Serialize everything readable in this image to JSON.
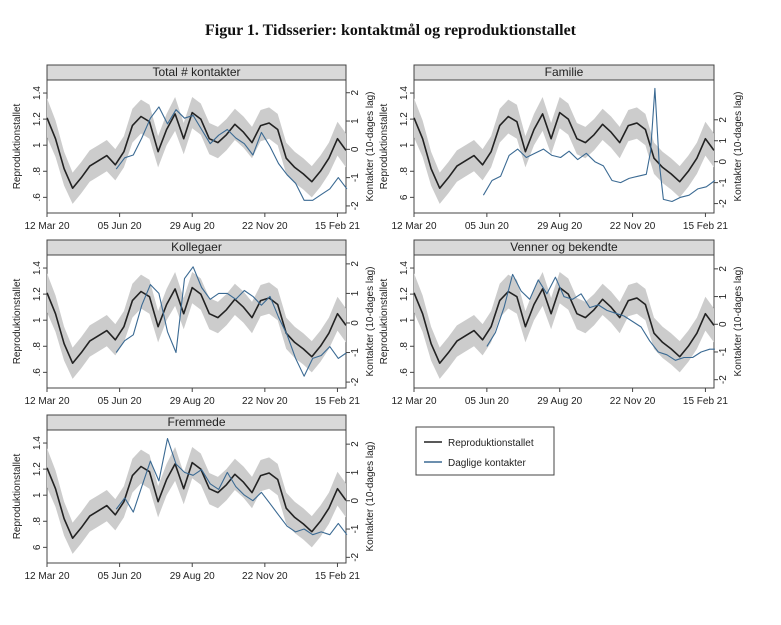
{
  "figure": {
    "title": "Figur 1. Tidsserier: kontaktmål og reproduktionstallet"
  },
  "chart_data": {
    "type": "line",
    "x_ticks": [
      "12 Mar 20",
      "05 Jun 20",
      "29 Aug 20",
      "22 Nov 20",
      "15 Feb 21"
    ],
    "left_ylabel": "Reproduktionstallet",
    "right_ylabel": "Kontakter (10-dages lag)",
    "legend": [
      {
        "name": "Reproduktionstallet",
        "color": "#222222"
      },
      {
        "name": "Daglige kontakter",
        "color": "#3b6a93"
      }
    ],
    "band_color": "#cccccc",
    "x_labels_sparse": [
      "12 Mar 20",
      "05 Jun 20",
      "29 Aug 20",
      "22 Nov 20",
      "15 Feb 21"
    ],
    "r_x": [
      "12 Mar 20",
      "22 Mar 20",
      "01 Apr 20",
      "11 Apr 20",
      "21 Apr 20",
      "01 May 20",
      "11 May 20",
      "21 May 20",
      "31 May 20",
      "10 Jun 20",
      "20 Jun 20",
      "30 Jun 20",
      "10 Jul 20",
      "20 Jul 20",
      "30 Jul 20",
      "09 Aug 20",
      "19 Aug 20",
      "29 Aug 20",
      "08 Sep 20",
      "18 Sep 20",
      "28 Sep 20",
      "08 Oct 20",
      "18 Oct 20",
      "28 Oct 20",
      "07 Nov 20",
      "17 Nov 20",
      "27 Nov 20",
      "07 Dec 20",
      "17 Dec 20",
      "27 Dec 20",
      "06 Jan 21",
      "16 Jan 21",
      "26 Jan 21",
      "05 Feb 21",
      "15 Feb 21",
      "25 Feb 21"
    ],
    "reproduction": [
      1.21,
      1.05,
      0.82,
      0.67,
      0.75,
      0.84,
      0.88,
      0.92,
      0.85,
      0.95,
      1.15,
      1.22,
      1.18,
      0.95,
      1.12,
      1.24,
      1.05,
      1.25,
      1.2,
      1.05,
      1.02,
      1.08,
      1.16,
      1.1,
      1.02,
      1.15,
      1.17,
      1.12,
      0.9,
      0.83,
      0.78,
      0.72,
      0.8,
      0.9,
      1.05,
      0.96
    ],
    "band_halfwidth": [
      0.15,
      0.14,
      0.13,
      0.12,
      0.12,
      0.12,
      0.12,
      0.12,
      0.12,
      0.12,
      0.13,
      0.13,
      0.13,
      0.12,
      0.12,
      0.13,
      0.12,
      0.12,
      0.12,
      0.12,
      0.12,
      0.12,
      0.12,
      0.12,
      0.12,
      0.12,
      0.12,
      0.12,
      0.12,
      0.12,
      0.12,
      0.12,
      0.12,
      0.12,
      0.13,
      0.13
    ],
    "panels": [
      {
        "title": "Total # kontakter",
        "left_ticks": [
          ".6",
          ".8",
          "1",
          "1.2",
          "1.4"
        ],
        "right_ticks": [
          "-2",
          "-1",
          "0",
          "1",
          "2"
        ],
        "ylim_right": [
          -2.25,
          2.45
        ],
        "contact_x": [
          "01 Jun 20",
          "11 Jun 20",
          "21 Jun 20",
          "01 Jul 20",
          "11 Jul 20",
          "21 Jul 20",
          "31 Jul 20",
          "10 Aug 20",
          "20 Aug 20",
          "30 Aug 20",
          "09 Sep 20",
          "19 Sep 20",
          "29 Sep 20",
          "09 Oct 20",
          "19 Oct 20",
          "29 Oct 20",
          "08 Nov 20",
          "18 Nov 20",
          "28 Nov 20",
          "08 Dec 20",
          "18 Dec 20",
          "28 Dec 20",
          "07 Jan 21",
          "17 Jan 21",
          "27 Jan 21",
          "06 Feb 21",
          "16 Feb 21",
          "26 Feb 21"
        ],
        "contacts": [
          -0.7,
          -0.3,
          -0.2,
          0.4,
          1.1,
          1.5,
          0.9,
          1.4,
          1.1,
          1.2,
          0.7,
          0.2,
          0.5,
          0.7,
          0.4,
          0.2,
          -0.2,
          0.6,
          0.1,
          -0.5,
          -0.9,
          -1.2,
          -1.8,
          -1.8,
          -1.6,
          -1.4,
          -1.0,
          -1.4
        ]
      },
      {
        "title": "Familie",
        "left_ticks": [
          "6",
          ".8",
          "1",
          "1.2",
          "1.4"
        ],
        "right_ticks": [
          "-2",
          "-1",
          "0",
          "1",
          "2"
        ],
        "ylim_right": [
          -2.45,
          3.9
        ],
        "contact_x": [
          "01 Jun 20",
          "11 Jun 20",
          "21 Jun 20",
          "01 Jul 20",
          "11 Jul 20",
          "21 Jul 20",
          "31 Jul 20",
          "10 Aug 20",
          "20 Aug 20",
          "30 Aug 20",
          "09 Sep 20",
          "19 Sep 20",
          "29 Sep 20",
          "09 Oct 20",
          "19 Oct 20",
          "29 Oct 20",
          "08 Nov 20",
          "18 Nov 20",
          "28 Nov 20",
          "08 Dec 20",
          "13 Dec 20",
          "18 Dec 20",
          "23 Dec 20",
          "28 Dec 20",
          "07 Jan 21",
          "17 Jan 21",
          "27 Jan 21",
          "06 Feb 21",
          "16 Feb 21",
          "26 Feb 21"
        ],
        "contacts": [
          -1.6,
          -0.9,
          -0.7,
          0.3,
          0.6,
          0.2,
          0.4,
          0.6,
          0.3,
          0.2,
          0.5,
          0.1,
          0.4,
          0.0,
          -0.2,
          -0.9,
          -1.0,
          -0.8,
          -0.7,
          -0.6,
          0.5,
          3.5,
          0.0,
          -1.8,
          -1.9,
          -1.7,
          -1.6,
          -1.3,
          -1.2,
          -0.9
        ]
      },
      {
        "title": "Kollegaer",
        "left_ticks": [
          ".6",
          ".8",
          "1",
          "1.2",
          "1.4"
        ],
        "right_ticks": [
          "-2",
          "-1",
          "0",
          "1",
          "2"
        ],
        "ylim_right": [
          -2.2,
          2.3
        ],
        "contact_x": [
          "01 Jun 20",
          "11 Jun 20",
          "21 Jun 20",
          "01 Jul 20",
          "11 Jul 20",
          "21 Jul 20",
          "31 Jul 20",
          "10 Aug 20",
          "20 Aug 20",
          "30 Aug 20",
          "09 Sep 20",
          "19 Sep 20",
          "29 Sep 20",
          "09 Oct 20",
          "19 Oct 20",
          "29 Oct 20",
          "08 Nov 20",
          "18 Nov 20",
          "28 Nov 20",
          "08 Dec 20",
          "18 Dec 20",
          "28 Dec 20",
          "07 Jan 21",
          "17 Jan 21",
          "27 Jan 21",
          "06 Feb 21",
          "16 Feb 21",
          "26 Feb 21"
        ],
        "contacts": [
          -1.0,
          -0.6,
          -0.4,
          0.6,
          1.3,
          1.0,
          -0.3,
          -1.0,
          1.5,
          1.9,
          1.2,
          0.8,
          1.0,
          1.0,
          0.8,
          1.1,
          0.9,
          0.6,
          0.9,
          0.2,
          -0.4,
          -1.2,
          -1.8,
          -1.2,
          -1.1,
          -0.8,
          -1.2,
          -1.0
        ]
      },
      {
        "title": "Venner og bekendte",
        "left_ticks": [
          ".6",
          ".8",
          "1",
          "1.2",
          "1.4"
        ],
        "right_ticks": [
          "-2",
          "-1",
          "0",
          "1",
          "2"
        ],
        "ylim_right": [
          -2.3,
          2.5
        ],
        "contact_x": [
          "05 Jun 20",
          "15 Jun 20",
          "25 Jun 20",
          "05 Jul 20",
          "15 Jul 20",
          "25 Jul 20",
          "04 Aug 20",
          "14 Aug 20",
          "24 Aug 20",
          "03 Sep 20",
          "13 Sep 20",
          "23 Sep 20",
          "03 Oct 20",
          "13 Oct 20",
          "23 Oct 20",
          "02 Nov 20",
          "12 Nov 20",
          "22 Nov 20",
          "02 Dec 20",
          "12 Dec 20",
          "22 Dec 20",
          "01 Jan 21",
          "11 Jan 21",
          "21 Jan 21",
          "31 Jan 21",
          "10 Feb 21",
          "20 Feb 21",
          "26 Feb 21"
        ],
        "contacts": [
          -0.8,
          -0.3,
          0.6,
          1.8,
          1.2,
          0.9,
          1.6,
          1.1,
          1.7,
          1.0,
          0.9,
          1.1,
          0.6,
          0.7,
          0.5,
          0.4,
          0.3,
          0.1,
          -0.1,
          -0.6,
          -1.0,
          -1.1,
          -1.3,
          -1.2,
          -1.2,
          -1.0,
          -0.9,
          -0.9
        ]
      },
      {
        "title": "Fremmede",
        "left_ticks": [
          "6",
          ".8",
          "1",
          "1.2",
          "1.4"
        ],
        "right_ticks": [
          "-2",
          "-1",
          "0",
          "1",
          "2"
        ],
        "ylim_right": [
          -2.2,
          2.5
        ],
        "contact_x": [
          "01 Jun 20",
          "11 Jun 20",
          "21 Jun 20",
          "01 Jul 20",
          "11 Jul 20",
          "21 Jul 20",
          "31 Jul 20",
          "10 Aug 20",
          "20 Aug 20",
          "30 Aug 20",
          "09 Sep 20",
          "19 Sep 20",
          "29 Sep 20",
          "09 Oct 20",
          "19 Oct 20",
          "29 Oct 20",
          "08 Nov 20",
          "18 Nov 20",
          "28 Nov 20",
          "08 Dec 20",
          "18 Dec 20",
          "28 Dec 20",
          "07 Jan 21",
          "17 Jan 21",
          "27 Jan 21",
          "06 Feb 21",
          "16 Feb 21",
          "26 Feb 21"
        ],
        "contacts": [
          -0.3,
          0.1,
          -0.4,
          0.5,
          1.4,
          0.7,
          2.2,
          1.3,
          1.0,
          0.9,
          1.1,
          0.6,
          0.4,
          1.0,
          0.5,
          0.2,
          0.0,
          0.3,
          -0.1,
          -0.5,
          -0.9,
          -1.1,
          -1.0,
          -1.2,
          -1.1,
          -1.2,
          -0.8,
          -1.2
        ]
      }
    ]
  }
}
